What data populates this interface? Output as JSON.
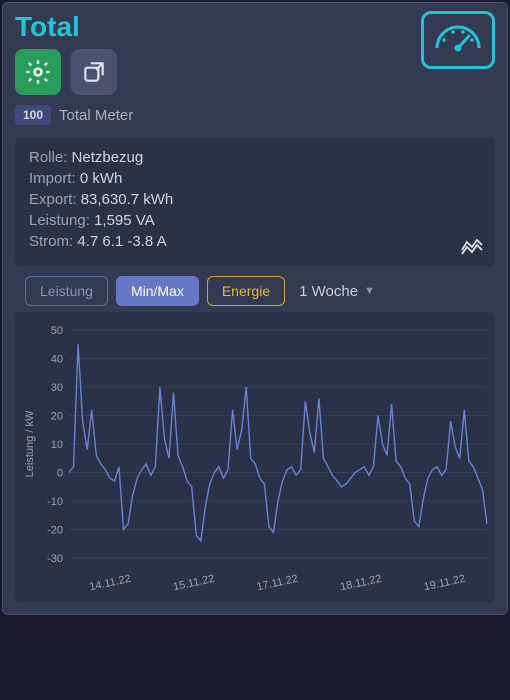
{
  "title": "Total",
  "badge": {
    "value": "100",
    "label": "Total Meter"
  },
  "info": {
    "rolle_label": "Rolle:",
    "rolle_value": "Netzbezug",
    "import_label": "Import:",
    "import_value": "0 kWh",
    "export_label": "Export:",
    "export_value": "83,630.7 kWh",
    "leistung_label": "Leistung:",
    "leistung_value": "1,595 VA",
    "strom_label": "Strom:",
    "strom_value": "4.7 6.1 -3.8 A"
  },
  "controls": {
    "leistung": "Leistung",
    "minmax": "Min/Max",
    "energie": "Energie",
    "period": "1 Woche"
  },
  "chart": {
    "type": "line",
    "ylabel": "Leistung / kW",
    "ylim": [
      -30,
      50
    ],
    "ytick_step": 10,
    "yticks": [
      50,
      40,
      30,
      20,
      10,
      0,
      -10,
      -20,
      -30
    ],
    "xticks": [
      "14.11.22",
      "15.11.22",
      "17.11.22",
      "18.11.22",
      "19.11.22"
    ],
    "line_color": "#6a82d0",
    "grid_color": "#3a4058",
    "axis_color": "#888fa8",
    "background_color": "#2b3148",
    "text_color": "#9aa2b8",
    "label_fontsize": 11,
    "series": [
      0,
      2,
      45,
      18,
      8,
      22,
      6,
      3,
      1,
      -2,
      -3,
      2,
      -20,
      -18,
      -8,
      -2,
      1,
      3,
      -1,
      2,
      30,
      12,
      5,
      28,
      6,
      2,
      -3,
      -5,
      -22,
      -24,
      -12,
      -4,
      0,
      2,
      -2,
      1,
      22,
      8,
      15,
      30,
      5,
      3,
      -2,
      -4,
      -19,
      -21,
      -10,
      -3,
      1,
      2,
      -1,
      1,
      25,
      14,
      7,
      26,
      5,
      2,
      -1,
      -3,
      -5,
      -4,
      -2,
      0,
      1,
      2,
      -1,
      2,
      20,
      10,
      6,
      24,
      4,
      2,
      -2,
      -4,
      -17,
      -19,
      -9,
      -2,
      1,
      2,
      -1,
      1,
      18,
      9,
      5,
      22,
      4,
      2,
      -2,
      -6,
      -18
    ]
  },
  "colors": {
    "accent": "#22c5d5",
    "card_bg": "#343a52",
    "panel_bg": "#2b3148",
    "gear_bg": "#2a9d5c",
    "expand_bg": "#4a5270",
    "active_btn": "#6878c8",
    "energy_border": "#d4a428"
  }
}
